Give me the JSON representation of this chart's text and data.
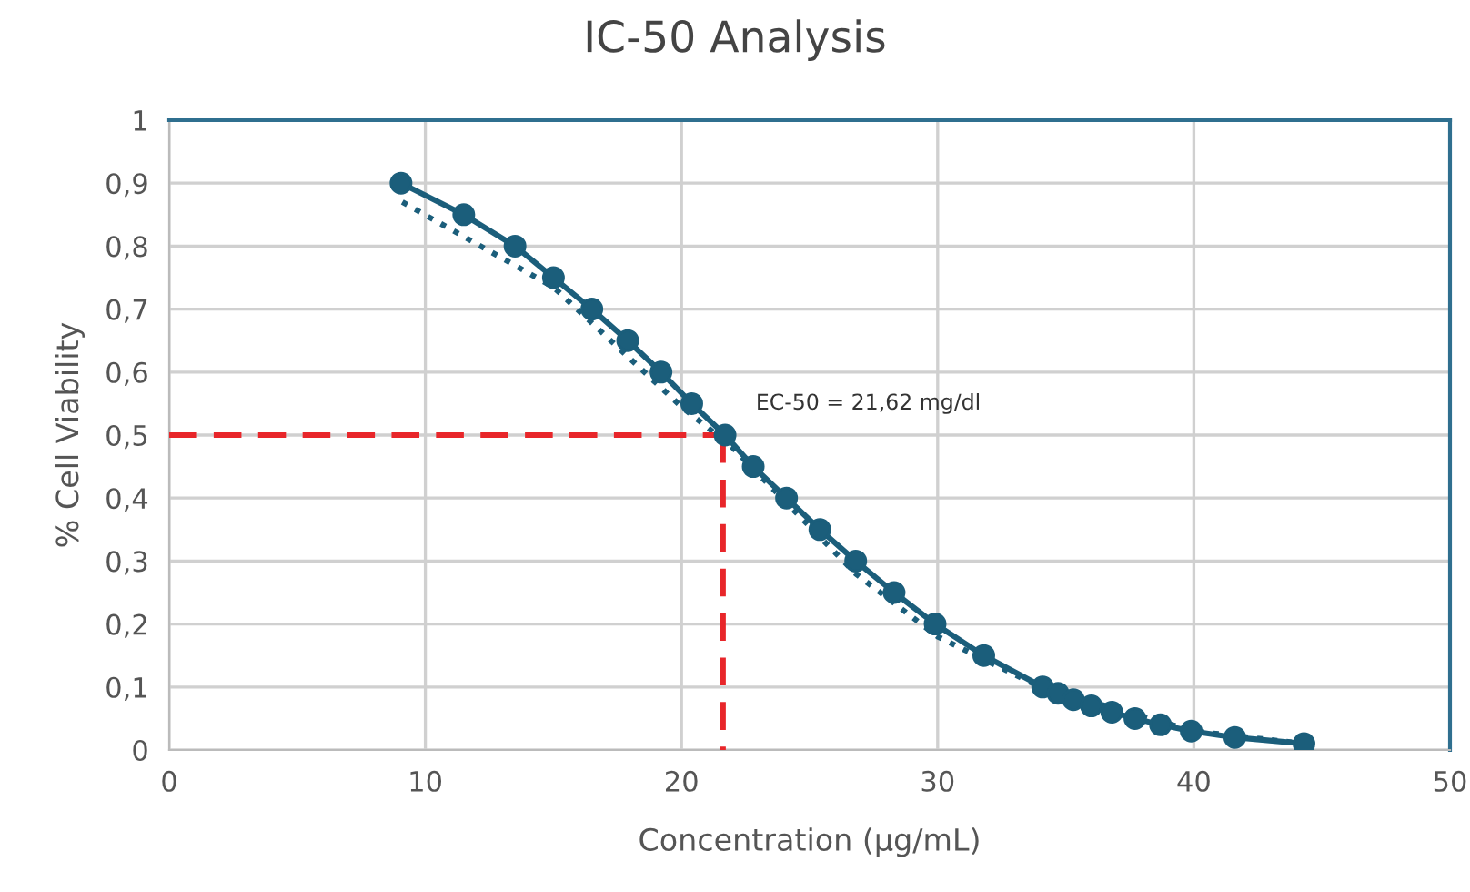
{
  "chart_data": {
    "type": "line",
    "title": "IC-50 Analysis",
    "xlabel": "Concentration (µg/mL)",
    "ylabel": "% Cell Viability",
    "xlim": [
      0,
      50
    ],
    "xticks": [
      0,
      10,
      20,
      30,
      40,
      50
    ],
    "ylim": [
      0,
      1
    ],
    "yticks": [
      0,
      {
        "value": 0.1,
        "label": "0,1"
      },
      {
        "value": 0.2,
        "label": "0,2"
      },
      {
        "value": 0.3,
        "label": "0,3"
      },
      {
        "value": 0.4,
        "label": "0,4"
      },
      {
        "value": 0.5,
        "label": "0,5"
      },
      {
        "value": 0.6,
        "label": "0,6"
      },
      {
        "value": 0.7,
        "label": "0,7"
      },
      {
        "value": 0.8,
        "label": "0,8"
      },
      {
        "value": 0.9,
        "label": "0,9"
      },
      1
    ],
    "grid": true,
    "series": [
      {
        "color": "#1b5e7b",
        "line_style": "dotted",
        "marker": "none",
        "x": [
          9.1,
          15,
          20,
          22,
          26.8,
          30,
          34,
          40,
          44.3
        ],
        "values": [
          0.87,
          0.735,
          0.545,
          0.48,
          0.28,
          0.18,
          0.1,
          0.03,
          0.01
        ]
      },
      {
        "color": "#1b5e7b",
        "line_style": "solid",
        "marker": "circle",
        "x": [
          9.05,
          11.5,
          13.5,
          15.0,
          16.5,
          17.9,
          19.2,
          20.4,
          21.7,
          22.8,
          24.1,
          25.4,
          26.8,
          28.3,
          29.9,
          31.8,
          34.1,
          34.7,
          35.3,
          36.0,
          36.8,
          37.7,
          38.7,
          39.9,
          41.6,
          44.3
        ],
        "values": [
          0.9,
          0.85,
          0.8,
          0.75,
          0.7,
          0.65,
          0.6,
          0.55,
          0.5,
          0.45,
          0.4,
          0.35,
          0.3,
          0.25,
          0.2,
          0.15,
          0.1,
          0.09,
          0.08,
          0.07,
          0.06,
          0.05,
          0.04,
          0.03,
          0.02,
          0.01
        ]
      },
      {
        "color": "#e8262a",
        "line_style": "dashed",
        "marker": "none",
        "x": [
          0,
          21.62
        ],
        "values": [
          0.5,
          0.5
        ]
      },
      {
        "color": "#e8262a",
        "line_style": "dashed",
        "marker": "none",
        "x": [
          21.62,
          21.62
        ],
        "values": [
          0.5,
          0
        ]
      }
    ],
    "annotations": [
      "EC-50 = 21,62 mg/dl"
    ]
  }
}
